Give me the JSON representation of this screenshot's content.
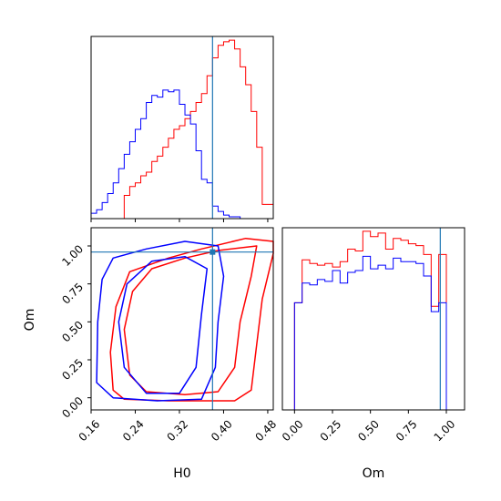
{
  "chart_data": {
    "type": "corner",
    "colors": {
      "run_red": "#ff0000",
      "run_blue": "#0000ff",
      "truth": "#1f77b4"
    },
    "parameters": [
      "H0",
      "Om"
    ],
    "truths": {
      "H0": 0.38,
      "Om": 0.96
    },
    "ranges": {
      "H0": [
        0.16,
        0.49
      ],
      "Om": [
        -0.08,
        1.12
      ]
    },
    "panels": [
      {
        "id": "H0-marginal",
        "type": "histogram",
        "parameter": "H0",
        "xlim": [
          0.16,
          0.49
        ],
        "bin_edges": [
          0.16,
          0.17,
          0.18,
          0.19,
          0.2,
          0.21,
          0.22,
          0.23,
          0.24,
          0.25,
          0.26,
          0.27,
          0.28,
          0.29,
          0.3,
          0.31,
          0.32,
          0.33,
          0.34,
          0.35,
          0.36,
          0.37,
          0.38,
          0.39,
          0.4,
          0.41,
          0.42,
          0.43,
          0.44,
          0.45,
          0.46,
          0.47,
          0.48,
          0.49
        ],
        "series": [
          {
            "color": "#ff0000",
            "values": [
              0,
              0,
              0,
              0,
              0,
              0,
              0.13,
              0.18,
              0.2,
              0.24,
              0.26,
              0.32,
              0.35,
              0.4,
              0.45,
              0.5,
              0.52,
              0.56,
              0.6,
              0.65,
              0.7,
              0.8,
              0.9,
              0.97,
              0.99,
              0.999,
              0.95,
              0.85,
              0.75,
              0.6,
              0.4,
              0.08,
              0.08
            ]
          },
          {
            "color": "#0000ff",
            "values": [
              0.03,
              0.05,
              0.09,
              0.14,
              0.2,
              0.28,
              0.36,
              0.43,
              0.5,
              0.56,
              0.65,
              0.69,
              0.68,
              0.72,
              0.71,
              0.72,
              0.64,
              0.58,
              0.53,
              0.38,
              0.22,
              0.2,
              0.07,
              0.04,
              0.02,
              0.01,
              0.01,
              0,
              0,
              0,
              0,
              0,
              0
            ]
          }
        ]
      },
      {
        "id": "Om-vs-H0",
        "type": "contour",
        "x": "H0",
        "y": "Om",
        "xlim": [
          0.16,
          0.49
        ],
        "ylim": [
          -0.08,
          1.12
        ],
        "contours": [
          {
            "color": "#ff0000",
            "level": "outer",
            "points": [
              [
                0.2,
                0.05
              ],
              [
                0.195,
                0.3
              ],
              [
                0.205,
                0.6
              ],
              [
                0.23,
                0.83
              ],
              [
                0.3,
                0.92
              ],
              [
                0.36,
                0.98
              ],
              [
                0.44,
                1.05
              ],
              [
                0.49,
                1.03
              ],
              [
                0.49,
                0.95
              ],
              [
                0.47,
                0.65
              ],
              [
                0.46,
                0.35
              ],
              [
                0.45,
                0.05
              ],
              [
                0.42,
                -0.02
              ],
              [
                0.3,
                -0.02
              ],
              [
                0.22,
                -0.01
              ]
            ]
          },
          {
            "color": "#ff0000",
            "level": "inner",
            "points": [
              [
                0.23,
                0.15
              ],
              [
                0.22,
                0.45
              ],
              [
                0.235,
                0.7
              ],
              [
                0.27,
                0.85
              ],
              [
                0.33,
                0.92
              ],
              [
                0.39,
                0.97
              ],
              [
                0.46,
                1.0
              ],
              [
                0.45,
                0.8
              ],
              [
                0.43,
                0.5
              ],
              [
                0.42,
                0.2
              ],
              [
                0.39,
                0.04
              ],
              [
                0.33,
                0.02
              ],
              [
                0.26,
                0.04
              ]
            ]
          },
          {
            "color": "#0000ff",
            "level": "outer",
            "points": [
              [
                0.17,
                0.1
              ],
              [
                0.172,
                0.5
              ],
              [
                0.18,
                0.78
              ],
              [
                0.2,
                0.92
              ],
              [
                0.26,
                0.98
              ],
              [
                0.33,
                1.03
              ],
              [
                0.39,
                1.0
              ],
              [
                0.4,
                0.8
              ],
              [
                0.39,
                0.5
              ],
              [
                0.385,
                0.2
              ],
              [
                0.36,
                -0.01
              ],
              [
                0.28,
                -0.02
              ],
              [
                0.2,
                0.0
              ]
            ]
          },
          {
            "color": "#0000ff",
            "level": "inner",
            "points": [
              [
                0.22,
                0.2
              ],
              [
                0.21,
                0.5
              ],
              [
                0.225,
                0.75
              ],
              [
                0.27,
                0.9
              ],
              [
                0.33,
                0.93
              ],
              [
                0.37,
                0.85
              ],
              [
                0.36,
                0.55
              ],
              [
                0.35,
                0.2
              ],
              [
                0.32,
                0.03
              ],
              [
                0.26,
                0.03
              ]
            ]
          }
        ]
      },
      {
        "id": "Om-marginal",
        "type": "histogram",
        "parameter": "Om",
        "xlim": [
          -0.08,
          1.12
        ],
        "bin_edges": [
          -0.05,
          -0.0,
          0.05,
          0.1,
          0.15,
          0.2,
          0.25,
          0.3,
          0.35,
          0.4,
          0.45,
          0.5,
          0.55,
          0.6,
          0.65,
          0.7,
          0.75,
          0.8,
          0.85,
          0.9,
          0.95,
          1.0,
          1.05
        ],
        "series": [
          {
            "color": "#ff0000",
            "values": [
              0,
              0.6,
              0.84,
              0.82,
              0.81,
              0.82,
              0.8,
              0.83,
              0.9,
              0.89,
              1.0,
              0.97,
              0.99,
              0.9,
              0.96,
              0.95,
              0.93,
              0.92,
              0.87,
              0.58,
              0.87,
              0.0
            ]
          },
          {
            "color": "#0000ff",
            "values": [
              0,
              0.6,
              0.71,
              0.7,
              0.73,
              0.72,
              0.78,
              0.71,
              0.77,
              0.78,
              0.86,
              0.79,
              0.81,
              0.79,
              0.85,
              0.83,
              0.83,
              0.82,
              0.75,
              0.55,
              0.6,
              0.0
            ]
          }
        ]
      }
    ],
    "axes": {
      "x_H0": {
        "label": "H0",
        "ticks": [
          0.16,
          0.24,
          0.32,
          0.4,
          0.48
        ],
        "tick_labels": [
          "0.16",
          "0.24",
          "0.32",
          "0.40",
          "0.48"
        ]
      },
      "y_Om": {
        "label": "Om",
        "ticks": [
          0.0,
          0.25,
          0.5,
          0.75,
          1.0
        ],
        "tick_labels": [
          "0.00",
          "0.25",
          "0.50",
          "0.75",
          "1.00"
        ]
      },
      "x_Om": {
        "label": "Om",
        "ticks": [
          0.0,
          0.25,
          0.5,
          0.75,
          1.0
        ],
        "tick_labels": [
          "0.00",
          "0.25",
          "0.50",
          "0.75",
          "1.00"
        ]
      }
    }
  }
}
